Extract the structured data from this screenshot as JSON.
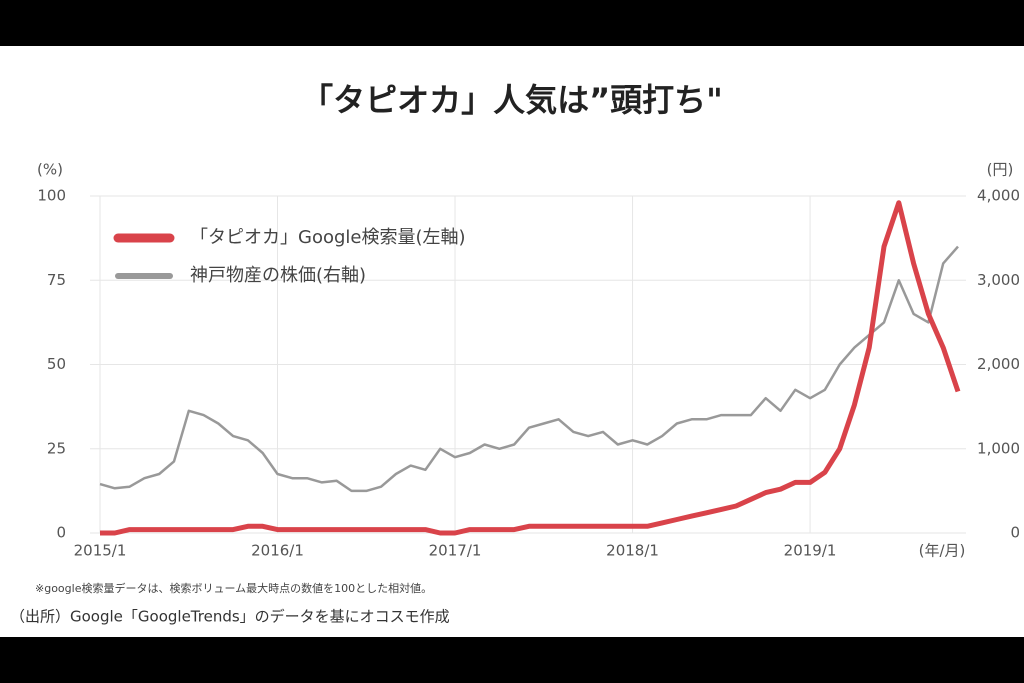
{
  "chart_data": {
    "type": "line",
    "title": "「タピオカ」人気は”頭打ち\"",
    "y_label": "(%)",
    "y2_label": "(円)",
    "x_label": "(年/月)",
    "note": "※google検索量データは、検索ボリューム最大時点の数値を100とした相対値。",
    "source": "（出所）Google「GoogleTrends」のデータを基にオコスモ作成",
    "x": [
      "2015/1",
      null,
      null,
      null,
      null,
      null,
      null,
      null,
      null,
      null,
      null,
      null,
      "2016/1",
      null,
      null,
      null,
      null,
      null,
      null,
      null,
      null,
      null,
      null,
      null,
      "2017/1",
      null,
      null,
      null,
      null,
      null,
      null,
      null,
      null,
      null,
      null,
      null,
      "2018/1",
      null,
      null,
      null,
      null,
      null,
      null,
      null,
      null,
      null,
      null,
      null,
      "2019/1",
      null,
      null,
      null,
      null,
      null,
      null,
      null,
      null,
      null,
      null
    ],
    "series": [
      {
        "name": "「タピオカ」Google検索量(左軸)",
        "color": "#d9434a",
        "values": [
          0,
          0,
          1,
          1,
          1,
          1,
          1,
          1,
          1,
          1,
          2,
          2,
          1,
          1,
          1,
          1,
          1,
          1,
          1,
          1,
          1,
          1,
          1,
          0,
          0,
          1,
          1,
          1,
          1,
          2,
          2,
          2,
          2,
          2,
          2,
          2,
          2,
          2,
          3,
          4,
          5,
          6,
          7,
          8,
          10,
          12,
          13,
          15,
          15,
          18,
          25,
          38,
          55,
          85,
          98,
          80,
          65,
          55,
          42
        ]
      },
      {
        "name": "神戸物産の株価(右軸)",
        "color": "#999999",
        "axis": "y2",
        "values": [
          580,
          530,
          550,
          650,
          700,
          850,
          1450,
          1400,
          1300,
          1150,
          1100,
          950,
          700,
          650,
          650,
          600,
          620,
          500,
          500,
          550,
          700,
          800,
          750,
          1000,
          900,
          950,
          1050,
          1000,
          1050,
          1250,
          1300,
          1350,
          1200,
          1150,
          1200,
          1050,
          1100,
          1050,
          1150,
          1300,
          1350,
          1350,
          1400,
          1400,
          1400,
          1600,
          1450,
          1700,
          1600,
          1700,
          2000,
          2200,
          2350,
          2500,
          3000,
          2600,
          2500,
          3200,
          3400
        ]
      }
    ],
    "ylim": [
      0,
      100
    ],
    "yticks": [
      0,
      25,
      50,
      75,
      100
    ],
    "y2lim": [
      0,
      4000
    ],
    "y2ticks": [
      0,
      {
        "value": 1000,
        "label": "1,000"
      },
      {
        "value": 2000,
        "label": "2,000"
      },
      {
        "value": 3000,
        "label": "3,000"
      },
      {
        "value": 4000,
        "label": "4,000"
      }
    ],
    "grid": true
  }
}
